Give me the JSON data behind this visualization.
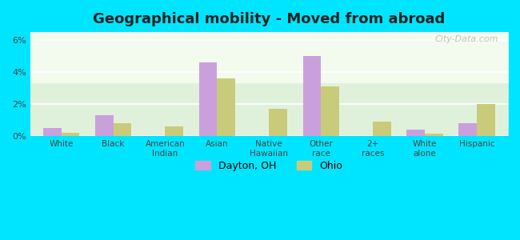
{
  "title": "Geographical mobility - Moved from abroad",
  "categories": [
    "White",
    "Black",
    "American\nIndian",
    "Asian",
    "Native\nHawaiian",
    "Other\nrace",
    "2+\nraces",
    "White\nalone",
    "Hispanic"
  ],
  "dayton": [
    0.5,
    1.3,
    0.0,
    4.6,
    0.0,
    5.0,
    0.0,
    0.4,
    0.8
  ],
  "ohio": [
    0.2,
    0.8,
    0.6,
    3.6,
    1.7,
    3.1,
    0.9,
    0.15,
    2.0
  ],
  "dayton_color": "#c9a0dc",
  "ohio_color": "#c8cc7a",
  "ylim": [
    0,
    6.5
  ],
  "yticks": [
    0,
    2,
    4,
    6
  ],
  "ytick_labels": [
    "0%",
    "2%",
    "4%",
    "6%"
  ],
  "bar_width": 0.35,
  "outer_color": "#00e5ff",
  "legend_dayton": "Dayton, OH",
  "legend_ohio": "Ohio",
  "watermark": "City-Data.com"
}
